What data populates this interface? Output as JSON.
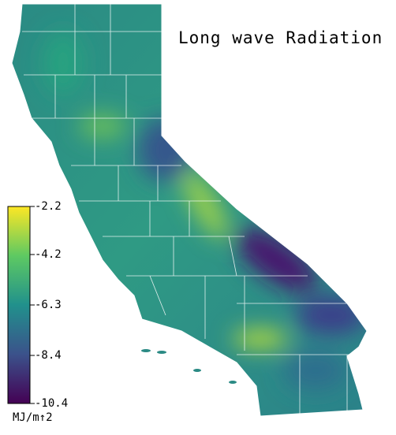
{
  "title": "Long wave Radiation",
  "colorbar": {
    "lim": [
      -10.4,
      -2.2
    ],
    "ticks": [
      -2.2,
      -4.2,
      -6.3,
      -8.4,
      -10.4
    ],
    "unit": "MJ/m↑2",
    "colors": [
      "#440154",
      "#3b528b",
      "#21918c",
      "#5ec962",
      "#fde725"
    ]
  }
}
